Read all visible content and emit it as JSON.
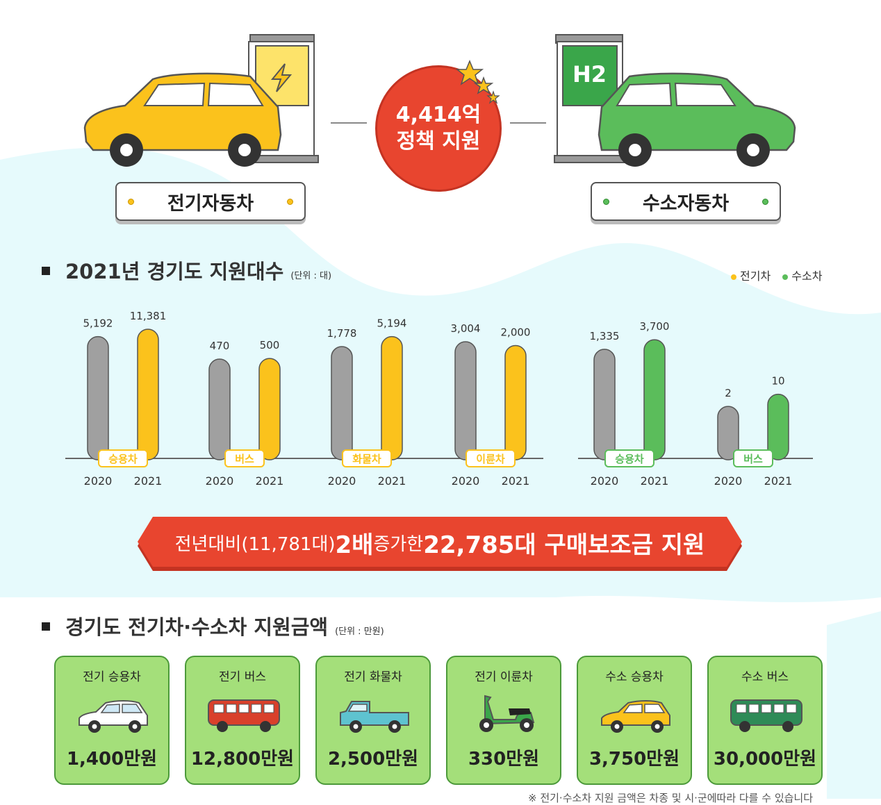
{
  "header": {
    "ev_label": "전기자동차",
    "hydrogen_label": "수소자동차",
    "badge_line1": "4,414억",
    "badge_line2": "정책 지원",
    "h2_text": "H2"
  },
  "section1": {
    "title": "2021년 경기도 지원대수",
    "unit": "(단위 : 대)",
    "legend_ev": "전기차",
    "legend_h2": "수소차"
  },
  "colors": {
    "ev": "#fbc21c",
    "h2": "#5bbd5b",
    "prev": "#a0a0a0",
    "banner": "#e8452f",
    "card": "#a4df7a"
  },
  "chart_data": {
    "type": "bar",
    "x": [
      "2020",
      "2021"
    ],
    "groups": [
      {
        "category": "승용차",
        "type": "전기차",
        "values": [
          5192,
          11381
        ],
        "labels": [
          "5,192",
          "11,381"
        ]
      },
      {
        "category": "버스",
        "type": "전기차",
        "values": [
          470,
          500
        ],
        "labels": [
          "470",
          "500"
        ]
      },
      {
        "category": "화물차",
        "type": "전기차",
        "values": [
          1778,
          5194
        ],
        "labels": [
          "1,778",
          "5,194"
        ]
      },
      {
        "category": "이륜차",
        "type": "전기차",
        "values": [
          3004,
          2000
        ],
        "labels": [
          "3,004",
          "2,000"
        ]
      },
      {
        "category": "승용차",
        "type": "수소차",
        "values": [
          1335,
          3700
        ],
        "labels": [
          "1,335",
          "3,700"
        ]
      },
      {
        "category": "버스",
        "type": "수소차",
        "values": [
          2,
          10
        ],
        "labels": [
          "2",
          "10"
        ]
      }
    ],
    "legend": "top-right"
  },
  "banner": {
    "part1": "전년대비(11,781대) ",
    "part2": "2배",
    "part3": " 증가한 ",
    "part4": "22,785대 구매보조금 지원"
  },
  "section2": {
    "title": "경기도 전기차·수소차 지원금액",
    "unit": "(단위 : 만원)"
  },
  "cards": [
    {
      "title": "전기 승용차",
      "amount": "1,400만원",
      "icon": "white-car-icon"
    },
    {
      "title": "전기 버스",
      "amount": "12,800만원",
      "icon": "red-bus-icon"
    },
    {
      "title": "전기 화물차",
      "amount": "2,500만원",
      "icon": "truck-icon"
    },
    {
      "title": "전기 이륜차",
      "amount": "330만원",
      "icon": "scooter-icon"
    },
    {
      "title": "수소 승용차",
      "amount": "3,750만원",
      "icon": "yellow-car-icon"
    },
    {
      "title": "수소 버스",
      "amount": "30,000만원",
      "icon": "green-bus-icon"
    }
  ],
  "footnote": "※ 전기·수소차 지원 금액은 차종 및 시·군에따라 다를 수 있습니다"
}
